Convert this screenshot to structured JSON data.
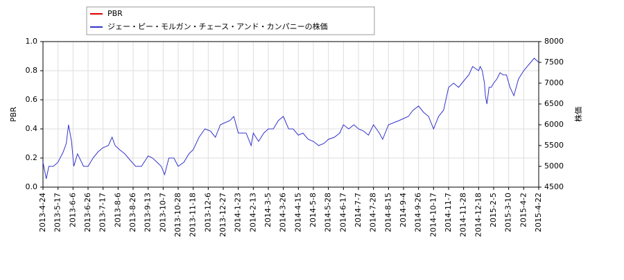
{
  "chart_data": {
    "type": "line",
    "x": [
      "2013-4-24",
      "2013-4-29",
      "2013-5-3",
      "2013-5-10",
      "2013-5-17",
      "2013-5-24",
      "2013-5-28",
      "2013-5-31",
      "2013-6-4",
      "2013-6-7",
      "2013-6-12",
      "2013-6-20",
      "2013-6-26",
      "2013-7-3",
      "2013-7-10",
      "2013-7-17",
      "2013-7-24",
      "2013-7-29",
      "2013-8-2",
      "2013-8-8",
      "2013-8-15",
      "2013-8-22",
      "2013-8-29",
      "2013-9-5",
      "2013-9-13",
      "2013-9-20",
      "2013-9-27",
      "2013-10-4",
      "2013-10-9",
      "2013-10-15",
      "2013-10-22",
      "2013-10-28",
      "2013-11-5",
      "2013-11-12",
      "2013-11-18",
      "2013-11-25",
      "2013-12-2",
      "2013-12-9",
      "2013-12-16",
      "2013-12-23",
      "2013-12-30",
      "2014-1-8",
      "2014-1-15",
      "2014-1-23",
      "2014-2-3",
      "2014-2-10",
      "2014-2-13",
      "2014-2-20",
      "2014-2-27",
      "2014-3-5",
      "2014-3-12",
      "2014-3-19",
      "2014-3-26",
      "2014-4-2",
      "2014-4-8",
      "2014-4-15",
      "2014-4-22",
      "2014-4-30",
      "2014-5-8",
      "2014-5-15",
      "2014-5-22",
      "2014-5-28",
      "2014-6-5",
      "2014-6-12",
      "2014-6-17",
      "2014-6-24",
      "2014-7-1",
      "2014-7-7",
      "2014-7-14",
      "2014-7-21",
      "2014-7-28",
      "2014-8-4",
      "2014-8-8",
      "2014-8-15",
      "2014-8-22",
      "2014-8-29",
      "2014-9-4",
      "2014-9-11",
      "2014-9-18",
      "2014-9-26",
      "2014-10-3",
      "2014-10-10",
      "2014-10-17",
      "2014-10-24",
      "2014-10-31",
      "2014-11-7",
      "2014-11-14",
      "2014-11-21",
      "2014-11-28",
      "2014-12-5",
      "2014-12-10",
      "2014-12-18",
      "2014-12-23",
      "2014-12-30",
      "2015-1-6",
      "2015-1-9",
      "2015-1-14",
      "2015-1-21",
      "2015-1-28",
      "2015-2-5",
      "2015-2-12",
      "2015-2-19",
      "2015-2-26",
      "2015-3-5",
      "2015-3-12",
      "2015-3-18",
      "2015-3-25",
      "2015-4-2",
      "2015-4-9",
      "2015-4-16",
      "2015-4-22"
    ],
    "series": [
      {
        "name": "PBR",
        "color": "#dd0000",
        "values": [
          null,
          null,
          null,
          null,
          null,
          null,
          null,
          null,
          null,
          null,
          null,
          null,
          null,
          null,
          null,
          null,
          null,
          null,
          null,
          null,
          null,
          null,
          null,
          null,
          null,
          null,
          null,
          null,
          null,
          null,
          null,
          null,
          null,
          null,
          null,
          null,
          null,
          null,
          null,
          null,
          null,
          null,
          null,
          null,
          null,
          null,
          null,
          null,
          null,
          null,
          null,
          null,
          null,
          null,
          null,
          null,
          null,
          null,
          null,
          null,
          null,
          null,
          null,
          null,
          null,
          null,
          null,
          null,
          null,
          null,
          null,
          null,
          null,
          null,
          null,
          null,
          null,
          null,
          null,
          null,
          null,
          null,
          null,
          null,
          null,
          null,
          null,
          null,
          null,
          null,
          null,
          null,
          null,
          null,
          null,
          null,
          null,
          null,
          null,
          null,
          null,
          null,
          null,
          null,
          null,
          null,
          null,
          null,
          null,
          null,
          null
        ]
      },
      {
        "name": "ジェー・ピー・モルガン・チェース・アンド・カンパニーの株価",
        "color": "#3333cc",
        "axis": "y2",
        "values": [
          5100,
          4700,
          5000,
          5000,
          5100,
          5350,
          5550,
          6000,
          5600,
          5000,
          5300,
          5000,
          5000,
          5200,
          5350,
          5450,
          5500,
          5700,
          5500,
          5400,
          5300,
          5150,
          5000,
          5000,
          5250,
          5200,
          5100,
          5000,
          4800,
          5200,
          5200,
          5000,
          5100,
          5300,
          5400,
          5700,
          5900,
          5850,
          5700,
          6000,
          6050,
          6100,
          6200,
          5800,
          5800,
          5500,
          5800,
          5600,
          5800,
          5900,
          5900,
          6100,
          6200,
          5900,
          5900,
          5750,
          5800,
          5650,
          5600,
          5500,
          5550,
          5650,
          5700,
          5800,
          6000,
          5900,
          6000,
          5900,
          5850,
          5750,
          6000,
          5800,
          5650,
          6000,
          6050,
          6100,
          6150,
          6200,
          6350,
          6450,
          6300,
          6200,
          5900,
          6200,
          6350,
          6900,
          7000,
          6900,
          7050,
          7200,
          7400,
          7300,
          7400,
          7300,
          7000,
          6700,
          6500,
          6900,
          6900,
          7000,
          7100,
          7250,
          7200,
          7200,
          6900,
          6700,
          7100,
          7300,
          7450,
          7600,
          7500
        ]
      }
    ],
    "ylabel": "PBR",
    "y2label": "株価",
    "ylim": [
      0,
      1
    ],
    "yticks": [
      {
        "value": 0,
        "label": "0.0"
      },
      0.2,
      0.4,
      0.6,
      0.8,
      {
        "value": 1,
        "label": "1.0"
      }
    ],
    "y2lim": [
      4500,
      8000
    ],
    "y2ticks": [
      4500,
      5000,
      5500,
      6000,
      6500,
      7000,
      7500,
      8000
    ],
    "xticks": [
      "2013-4-24",
      "2013-5-17",
      "2013-6-6",
      "2013-6-26",
      "2013-7-17",
      "2013-8-6",
      "2013-8-26",
      "2013-9-13",
      "2013-10-7",
      "2013-10-28",
      "2013-11-18",
      "2013-12-6",
      "2013-12-27",
      "2014-1-23",
      "2014-2-13",
      "2014-3-5",
      "2014-3-26",
      "2014-4-15",
      "2014-5-8",
      "2014-5-28",
      "2014-6-17",
      "2014-7-7",
      "2014-7-28",
      "2014-8-15",
      "2014-9-4",
      "2014-9-26",
      "2014-10-17",
      "2014-11-7",
      "2014-11-28",
      "2014-12-18",
      "2015-2-5",
      "2015-3-10",
      "2015-4-2",
      "2015-4-22"
    ],
    "grid": true
  }
}
